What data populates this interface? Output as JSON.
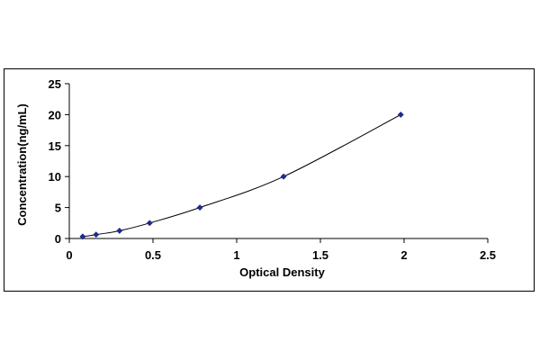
{
  "chart_data": {
    "type": "scatter",
    "xlabel": "Optical Density",
    "ylabel": "Concentration(ng/mL)",
    "xlim": [
      0,
      2.5
    ],
    "ylim": [
      0,
      25
    ],
    "x_ticks": [
      "0",
      "0.5",
      "1",
      "1.5",
      "2",
      "2.5"
    ],
    "y_ticks": [
      "0",
      "5",
      "10",
      "15",
      "20",
      "25"
    ],
    "grid": false,
    "legend": "none",
    "trendline": true,
    "series": [
      {
        "color": "#1f2a8c",
        "marker": "diamond",
        "x": [
          0.08,
          0.16,
          0.3,
          0.48,
          0.78,
          1.28,
          1.98
        ],
        "y": [
          0.31,
          0.625,
          1.25,
          2.5,
          5,
          10,
          20
        ]
      }
    ]
  }
}
